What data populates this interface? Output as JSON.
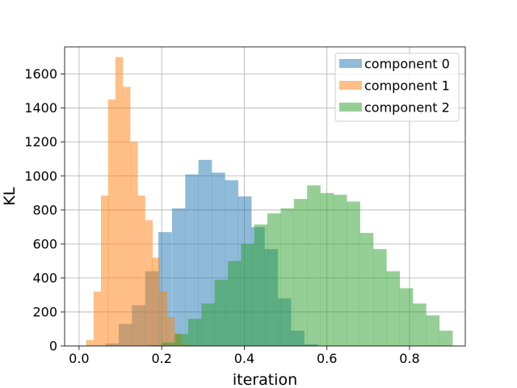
{
  "chart_data": {
    "type": "histogram",
    "xlabel": "iteration",
    "ylabel": "KL",
    "xlim": [
      -0.035,
      0.935
    ],
    "ylim": [
      0,
      1760
    ],
    "xticks": [
      "0.0",
      "0.2",
      "0.4",
      "0.6",
      "0.8"
    ],
    "yticks": [
      "0",
      "200",
      "400",
      "600",
      "800",
      "1000",
      "1200",
      "1400",
      "1600"
    ],
    "grid": true,
    "legend_position": "top-right",
    "series": [
      {
        "name": "component 0",
        "color": "#1f77b4",
        "opacity": 0.5,
        "bin_width": 0.0321,
        "bin_starts": [
          0.032,
          0.064,
          0.096,
          0.128,
          0.16,
          0.192,
          0.225,
          0.257,
          0.289,
          0.321,
          0.353,
          0.385,
          0.417,
          0.449,
          0.481,
          0.513,
          0.545
        ],
        "counts": [
          2,
          15,
          130,
          240,
          440,
          670,
          810,
          1010,
          1095,
          1020,
          975,
          880,
          700,
          570,
          280,
          90,
          10
        ]
      },
      {
        "name": "component 1",
        "color": "#ff7f0e",
        "opacity": 0.5,
        "bin_width": 0.0178,
        "bin_starts": [
          0.017,
          0.035,
          0.053,
          0.07,
          0.088,
          0.106,
          0.124,
          0.142,
          0.16,
          0.177,
          0.195,
          0.213,
          0.231,
          0.249
        ],
        "counts": [
          35,
          320,
          885,
          1450,
          1700,
          1525,
          1200,
          885,
          740,
          520,
          320,
          170,
          75,
          10
        ]
      },
      {
        "name": "component 2",
        "color": "#2ca02c",
        "opacity": 0.5,
        "bin_width": 0.0321,
        "bin_starts": [
          0.168,
          0.2,
          0.232,
          0.264,
          0.296,
          0.328,
          0.36,
          0.392,
          0.424,
          0.456,
          0.488,
          0.52,
          0.552,
          0.584,
          0.616,
          0.648,
          0.68,
          0.712,
          0.744,
          0.776,
          0.808,
          0.84,
          0.872
        ],
        "counts": [
          5,
          20,
          70,
          160,
          250,
          390,
          500,
          600,
          715,
          780,
          810,
          865,
          945,
          900,
          890,
          850,
          665,
          570,
          440,
          340,
          250,
          180,
          90
        ]
      }
    ]
  }
}
